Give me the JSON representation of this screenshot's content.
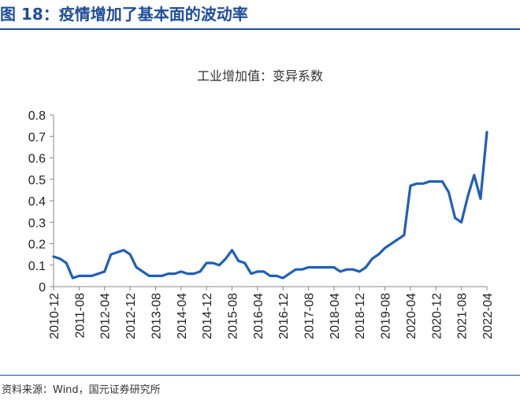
{
  "figure": {
    "title": "图 18：疫情增加了基本面的波动率",
    "source": "资料来源：Wind，国元证券研究所"
  },
  "colors": {
    "accent": "#1f4e9a",
    "line": "#1f5fb8"
  },
  "chart_data": {
    "type": "line",
    "title": "工业增加值：变异系数",
    "xlabel": "",
    "ylabel": "",
    "ylim": [
      0,
      0.8
    ],
    "yticks": [
      "0",
      "0.1",
      "0.2",
      "0.3",
      "0.4",
      "0.5",
      "0.6",
      "0.7",
      "0.8"
    ],
    "xtick_labels": [
      "2010-12",
      "2011-08",
      "2012-04",
      "2012-12",
      "2013-08",
      "2014-04",
      "2014-12",
      "2015-08",
      "2016-04",
      "2016-12",
      "2017-08",
      "2018-04",
      "2018-12",
      "2019-08",
      "2020-04",
      "2020-12",
      "2021-08",
      "2022-04"
    ],
    "grid": false,
    "legend": "none",
    "series": [
      {
        "values": [
          [
            "2010-12",
            0.14
          ],
          [
            "2011-02",
            0.13
          ],
          [
            "2011-04",
            0.11
          ],
          [
            "2011-06",
            0.04
          ],
          [
            "2011-08",
            0.05
          ],
          [
            "2011-10",
            0.05
          ],
          [
            "2011-12",
            0.05
          ],
          [
            "2012-02",
            0.06
          ],
          [
            "2012-04",
            0.07
          ],
          [
            "2012-06",
            0.15
          ],
          [
            "2012-08",
            0.16
          ],
          [
            "2012-10",
            0.17
          ],
          [
            "2012-12",
            0.15
          ],
          [
            "2013-02",
            0.09
          ],
          [
            "2013-04",
            0.07
          ],
          [
            "2013-06",
            0.05
          ],
          [
            "2013-08",
            0.05
          ],
          [
            "2013-10",
            0.05
          ],
          [
            "2013-12",
            0.06
          ],
          [
            "2014-02",
            0.06
          ],
          [
            "2014-04",
            0.07
          ],
          [
            "2014-06",
            0.06
          ],
          [
            "2014-08",
            0.06
          ],
          [
            "2014-10",
            0.07
          ],
          [
            "2014-12",
            0.11
          ],
          [
            "2015-02",
            0.11
          ],
          [
            "2015-04",
            0.1
          ],
          [
            "2015-06",
            0.13
          ],
          [
            "2015-08",
            0.17
          ],
          [
            "2015-10",
            0.12
          ],
          [
            "2015-12",
            0.11
          ],
          [
            "2016-02",
            0.06
          ],
          [
            "2016-04",
            0.07
          ],
          [
            "2016-06",
            0.07
          ],
          [
            "2016-08",
            0.05
          ],
          [
            "2016-10",
            0.05
          ],
          [
            "2016-12",
            0.04
          ],
          [
            "2017-02",
            0.06
          ],
          [
            "2017-04",
            0.08
          ],
          [
            "2017-06",
            0.08
          ],
          [
            "2017-08",
            0.09
          ],
          [
            "2017-10",
            0.09
          ],
          [
            "2017-12",
            0.09
          ],
          [
            "2018-02",
            0.09
          ],
          [
            "2018-04",
            0.09
          ],
          [
            "2018-06",
            0.07
          ],
          [
            "2018-08",
            0.08
          ],
          [
            "2018-10",
            0.08
          ],
          [
            "2018-12",
            0.07
          ],
          [
            "2019-02",
            0.09
          ],
          [
            "2019-04",
            0.13
          ],
          [
            "2019-06",
            0.15
          ],
          [
            "2019-08",
            0.18
          ],
          [
            "2019-10",
            0.2
          ],
          [
            "2019-12",
            0.22
          ],
          [
            "2020-02",
            0.24
          ],
          [
            "2020-04",
            0.47
          ],
          [
            "2020-06",
            0.48
          ],
          [
            "2020-08",
            0.48
          ],
          [
            "2020-10",
            0.49
          ],
          [
            "2020-12",
            0.49
          ],
          [
            "2021-02",
            0.49
          ],
          [
            "2021-04",
            0.44
          ],
          [
            "2021-06",
            0.32
          ],
          [
            "2021-08",
            0.3
          ],
          [
            "2021-10",
            0.42
          ],
          [
            "2021-12",
            0.52
          ],
          [
            "2022-02",
            0.41
          ],
          [
            "2022-04",
            0.72
          ]
        ]
      }
    ]
  }
}
